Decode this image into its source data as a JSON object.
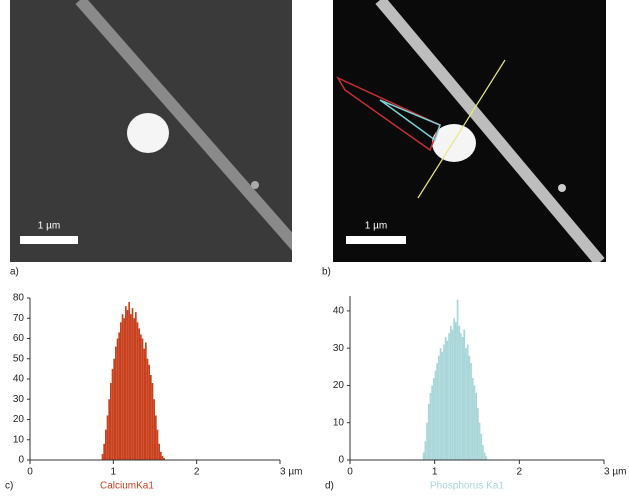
{
  "images": [
    {
      "label": "a)",
      "scale": "1 µm"
    },
    {
      "label": "b)",
      "scale": "1 µm"
    }
  ],
  "chart_data": [
    {
      "type": "histogram",
      "label": "c)",
      "series_name": "CalciumKa1",
      "color": "#c8401e",
      "bins": [
        0.86,
        0.88,
        0.9,
        0.92,
        0.94,
        0.96,
        0.98,
        1.0,
        1.02,
        1.04,
        1.06,
        1.08,
        1.1,
        1.12,
        1.14,
        1.16,
        1.18,
        1.2,
        1.22,
        1.24,
        1.26,
        1.28,
        1.3,
        1.32,
        1.34,
        1.36,
        1.38,
        1.4,
        1.42,
        1.44,
        1.46,
        1.48,
        1.5,
        1.52,
        1.54,
        1.56,
        1.58,
        1.6,
        1.62
      ],
      "values": [
        3,
        8,
        15,
        22,
        30,
        38,
        45,
        50,
        56,
        60,
        63,
        68,
        72,
        70,
        76,
        74,
        78,
        72,
        75,
        70,
        73,
        68,
        65,
        62,
        60,
        55,
        58,
        50,
        47,
        42,
        38,
        30,
        22,
        15,
        8,
        4,
        2,
        1
      ],
      "xlim": [
        0,
        3
      ],
      "xticks": [
        0,
        1,
        2,
        {
          "value": 3,
          "label": "3 µm"
        }
      ],
      "ylim": [
        0,
        80
      ],
      "yticks": [
        0,
        10,
        20,
        30,
        40,
        50,
        60,
        70,
        80
      ]
    },
    {
      "type": "histogram",
      "label": "d)",
      "series_name": "Phosphorus Ka1",
      "color": "#a9d6d8",
      "bins": [
        0.86,
        0.88,
        0.9,
        0.92,
        0.94,
        0.96,
        0.98,
        1.0,
        1.02,
        1.04,
        1.06,
        1.08,
        1.1,
        1.12,
        1.14,
        1.16,
        1.18,
        1.2,
        1.22,
        1.24,
        1.26,
        1.28,
        1.3,
        1.32,
        1.34,
        1.36,
        1.38,
        1.4,
        1.42,
        1.44,
        1.46,
        1.48,
        1.5,
        1.52,
        1.54,
        1.56,
        1.58,
        1.6,
        1.62
      ],
      "values": [
        2,
        5,
        10,
        15,
        18,
        20,
        22,
        24,
        26,
        28,
        30,
        29,
        31,
        33,
        32,
        34,
        36,
        35,
        38,
        37,
        43,
        36,
        34,
        33,
        35,
        30,
        31,
        28,
        26,
        22,
        20,
        18,
        14,
        10,
        7,
        4,
        2,
        1
      ],
      "xlim": [
        0,
        3
      ],
      "xticks": [
        0,
        1,
        2,
        {
          "value": 3,
          "label": "3 µm"
        }
      ],
      "ylim": [
        0,
        44
      ],
      "yticks": [
        0,
        10,
        20,
        30,
        40
      ]
    }
  ]
}
